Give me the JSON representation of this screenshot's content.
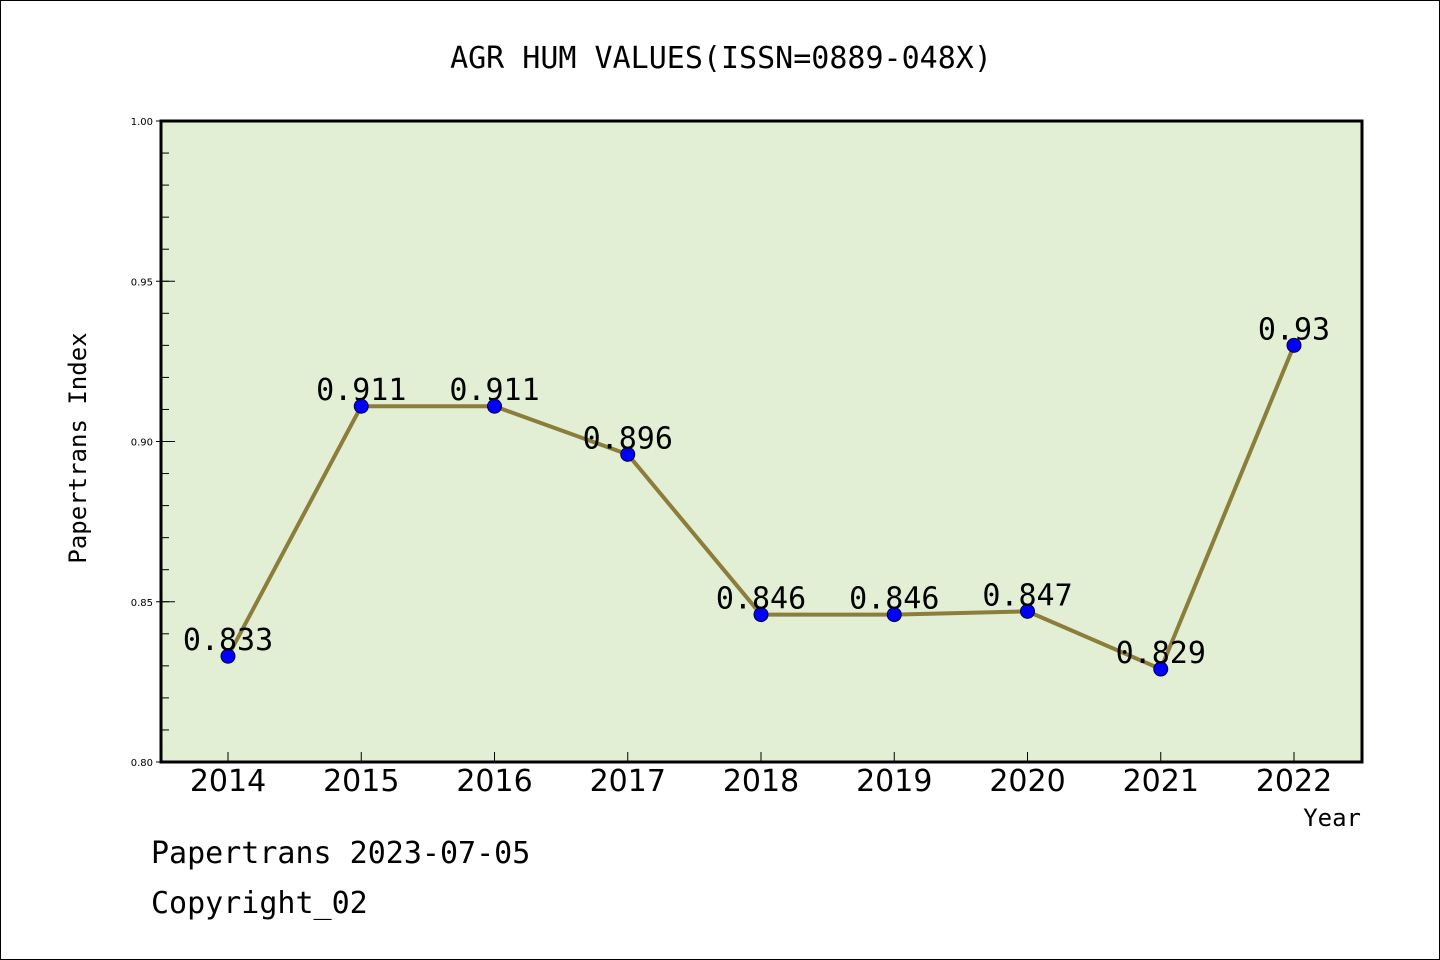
{
  "chart_data": {
    "type": "line",
    "title": "AGR HUM VALUES(ISSN=0889-048X)",
    "xlabel": "Year",
    "ylabel": "Papertrans Index",
    "categories": [
      "2014",
      "2015",
      "2016",
      "2017",
      "2018",
      "2019",
      "2020",
      "2021",
      "2022"
    ],
    "series": [
      {
        "values": [
          0.833,
          0.911,
          0.911,
          0.896,
          0.846,
          0.846,
          0.847,
          0.829,
          0.93
        ]
      }
    ],
    "data_labels": [
      "0.833",
      "0.911",
      "0.911",
      "0.896",
      "0.846",
      "0.846",
      "0.847",
      "0.829",
      "0.93"
    ],
    "ylim": [
      0.8,
      1.0
    ],
    "y_ticks": [
      "0.80",
      "0.85",
      "0.90",
      "0.95",
      "1.00"
    ],
    "y_tick_values": [
      0.8,
      0.85,
      0.9,
      0.95,
      1.0
    ],
    "y_minor_step": 0.01,
    "grid": false,
    "colors": {
      "plot_background": "#e2efd5",
      "line": "#8b7d3a",
      "marker": "#0000ff"
    }
  },
  "footer": {
    "line1": "Papertrans 2023-07-05",
    "line2": "Copyright_02"
  }
}
